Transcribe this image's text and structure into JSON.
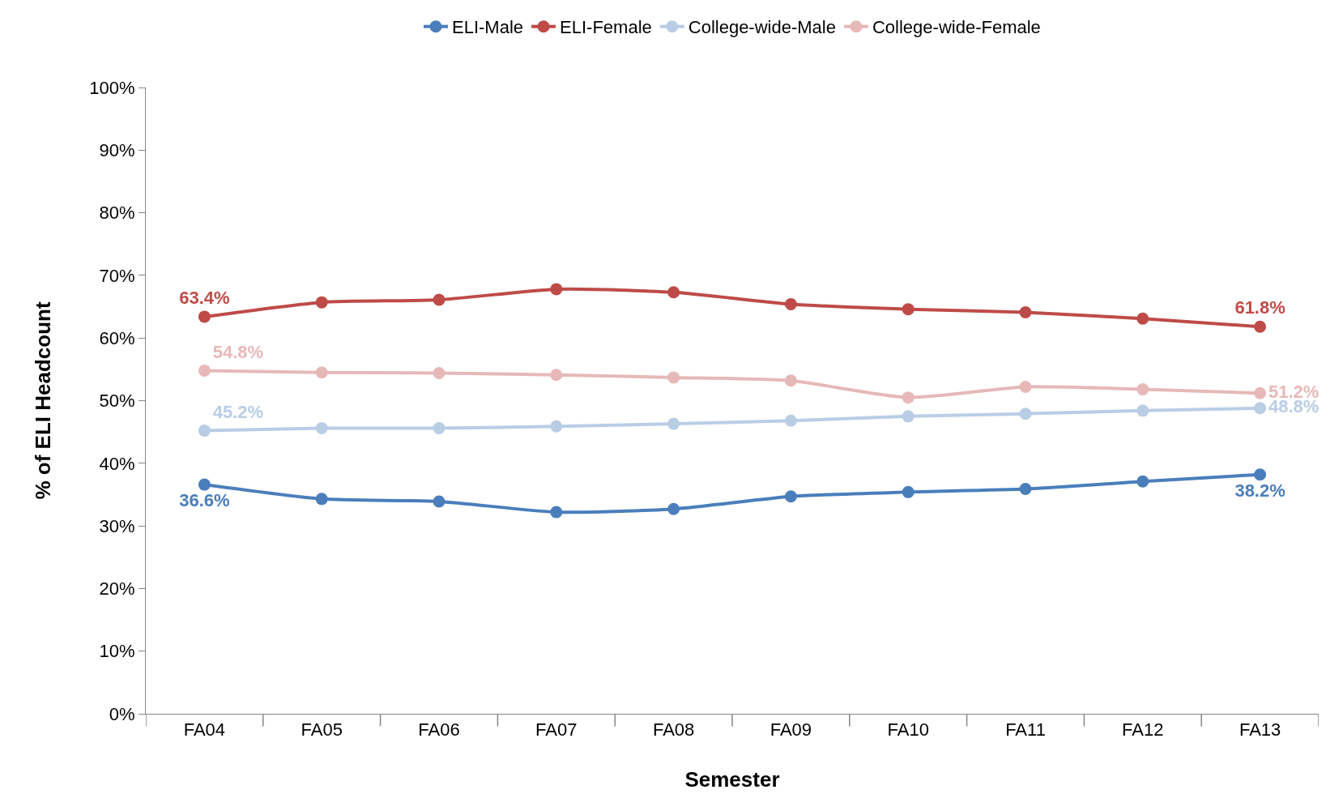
{
  "chart_data": {
    "type": "line",
    "xlabel": "Semester",
    "ylabel": "% of ELI Headcount",
    "categories": [
      "FA04",
      "FA05",
      "FA06",
      "FA07",
      "FA08",
      "FA09",
      "FA10",
      "FA11",
      "FA12",
      "FA13"
    ],
    "series": [
      {
        "name": "ELI-Male",
        "color": "#4a7ebb",
        "values": [
          36.6,
          34.3,
          33.9,
          32.2,
          32.7,
          34.7,
          35.4,
          35.9,
          37.1,
          38.2
        ],
        "value_labels": [
          "36.6%",
          null,
          null,
          null,
          null,
          null,
          null,
          null,
          null,
          "38.2%"
        ]
      },
      {
        "name": "ELI-Female",
        "color": "#be4b48",
        "values": [
          63.4,
          65.7,
          66.1,
          67.8,
          67.3,
          65.4,
          64.6,
          64.1,
          63.1,
          61.8
        ],
        "value_labels": [
          "63.4%",
          null,
          null,
          null,
          null,
          null,
          null,
          null,
          null,
          "61.8%"
        ]
      },
      {
        "name": "College-wide-Male",
        "color": "#b9cde5",
        "values": [
          45.2,
          45.6,
          45.6,
          45.9,
          46.3,
          46.8,
          47.5,
          47.9,
          48.4,
          48.8
        ],
        "value_labels": [
          "45.2%",
          null,
          null,
          null,
          null,
          null,
          null,
          null,
          null,
          "48.8%"
        ]
      },
      {
        "name": "College-wide-Female",
        "color": "#e6b9b8",
        "values": [
          54.8,
          54.5,
          54.4,
          54.1,
          53.7,
          53.2,
          50.5,
          52.2,
          51.8,
          51.2
        ],
        "value_labels": [
          "54.8%",
          null,
          null,
          null,
          null,
          null,
          null,
          null,
          null,
          "51.2%"
        ]
      }
    ],
    "ylim": [
      0,
      100
    ],
    "yticks": [
      {
        "value": 0,
        "label": "0%"
      },
      {
        "value": 10,
        "label": "10%"
      },
      {
        "value": 20,
        "label": "20%"
      },
      {
        "value": 30,
        "label": "30%"
      },
      {
        "value": 40,
        "label": "40%"
      },
      {
        "value": 50,
        "label": "50%"
      },
      {
        "value": 60,
        "label": "60%"
      },
      {
        "value": 70,
        "label": "70%"
      },
      {
        "value": 80,
        "label": "80%"
      },
      {
        "value": 90,
        "label": "90%"
      },
      {
        "value": 100,
        "label": "100%"
      }
    ],
    "legend": "top",
    "marker": "circle",
    "line_style": "solid"
  }
}
